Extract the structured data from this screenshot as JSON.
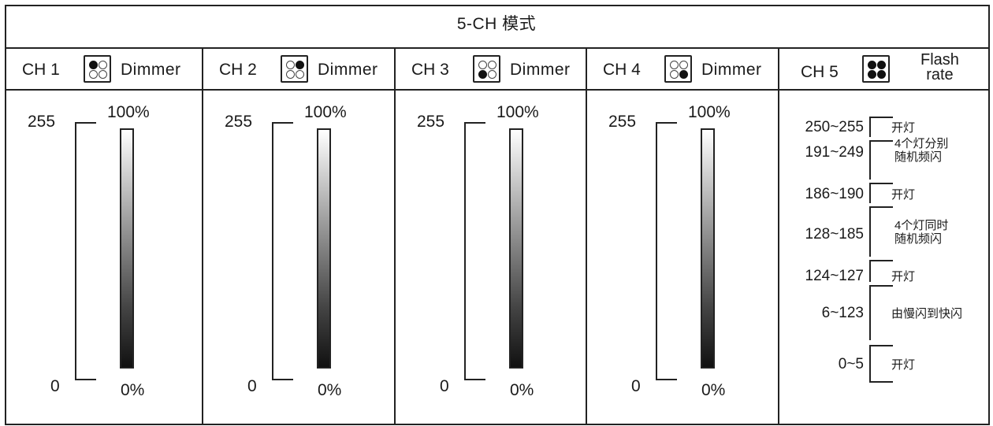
{
  "title": "5-CH 模式",
  "channels": [
    {
      "label": "CH 1",
      "function": "Dimmer",
      "top_value": "255",
      "bottom_value": "0",
      "top_percent": "100%",
      "bottom_percent": "0%",
      "leds": [
        true,
        false,
        false,
        false
      ]
    },
    {
      "label": "CH 2",
      "function": "Dimmer",
      "top_value": "255",
      "bottom_value": "0",
      "top_percent": "100%",
      "bottom_percent": "0%",
      "leds": [
        false,
        true,
        false,
        false
      ]
    },
    {
      "label": "CH 3",
      "function": "Dimmer",
      "top_value": "255",
      "bottom_value": "0",
      "top_percent": "100%",
      "bottom_percent": "0%",
      "leds": [
        false,
        false,
        true,
        false
      ]
    },
    {
      "label": "CH 4",
      "function": "Dimmer",
      "top_value": "255",
      "bottom_value": "0",
      "top_percent": "100%",
      "bottom_percent": "0%",
      "leds": [
        false,
        false,
        false,
        true
      ]
    }
  ],
  "ch5": {
    "label": "CH 5",
    "function_line1": "Flash",
    "function_line2": "rate",
    "leds": [
      true,
      true,
      true,
      true
    ],
    "ranges": [
      {
        "range": "250~255",
        "desc": [
          "开灯"
        ]
      },
      {
        "range": "191~249",
        "desc": [
          "4个灯分别",
          "随机频闪"
        ]
      },
      {
        "range": "186~190",
        "desc": [
          "开灯"
        ]
      },
      {
        "range": "128~185",
        "desc": [
          "4个灯同时",
          "随机频闪"
        ]
      },
      {
        "range": "124~127",
        "desc": [
          "开灯"
        ]
      },
      {
        "range": "6~123",
        "desc": [
          "由慢闪到快闪"
        ]
      },
      {
        "range": "0~5",
        "desc": [
          "开灯"
        ]
      }
    ]
  }
}
